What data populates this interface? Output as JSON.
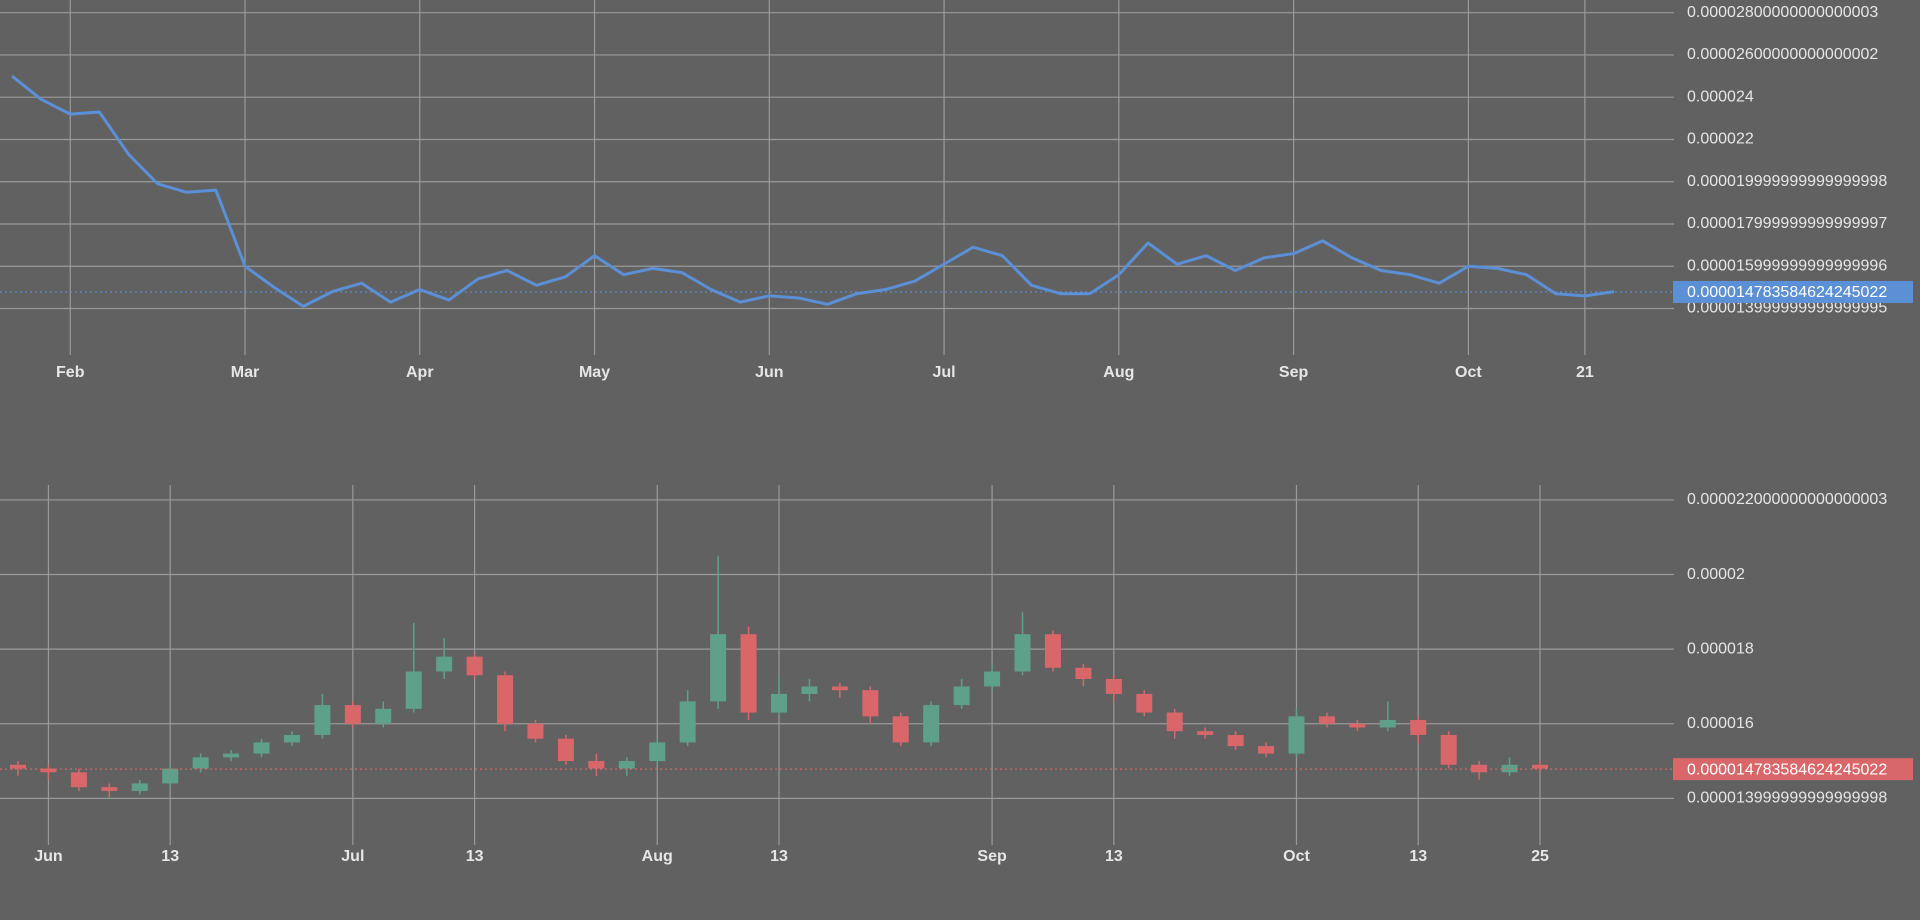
{
  "chart_data": [
    {
      "type": "line",
      "color": "#5b8fd6",
      "grid": true,
      "categories": [
        null,
        null,
        "Feb",
        null,
        null,
        null,
        null,
        null,
        "Mar",
        null,
        null,
        null,
        null,
        null,
        "Apr",
        null,
        null,
        null,
        null,
        null,
        "May",
        null,
        null,
        null,
        null,
        null,
        "Jun",
        null,
        null,
        null,
        null,
        null,
        "Jul",
        null,
        null,
        null,
        null,
        null,
        "Aug",
        null,
        null,
        null,
        null,
        null,
        "Sep",
        null,
        null,
        null,
        null,
        null,
        "Oct",
        null,
        null,
        null,
        "21",
        null
      ],
      "values": [
        2.5e-05,
        2.39e-05,
        2.32e-05,
        2.33e-05,
        2.13e-05,
        1.99e-05,
        1.95e-05,
        1.96e-05,
        1.6e-05,
        1.5e-05,
        1.41e-05,
        1.48e-05,
        1.52e-05,
        1.43e-05,
        1.49e-05,
        1.44e-05,
        1.54e-05,
        1.58e-05,
        1.51e-05,
        1.55e-05,
        1.65e-05,
        1.56e-05,
        1.59e-05,
        1.57e-05,
        1.49e-05,
        1.43e-05,
        1.46e-05,
        1.45e-05,
        1.42e-05,
        1.47e-05,
        1.49e-05,
        1.53e-05,
        1.61e-05,
        1.69e-05,
        1.65e-05,
        1.51e-05,
        1.47e-05,
        1.47e-05,
        1.56e-05,
        1.71e-05,
        1.61e-05,
        1.65e-05,
        1.58e-05,
        1.64e-05,
        1.66e-05,
        1.72e-05,
        1.64e-05,
        1.58e-05,
        1.56e-05,
        1.52e-05,
        1.6e-05,
        1.59e-05,
        1.56e-05,
        1.47e-05,
        1.46e-05,
        1.48e-05
      ],
      "ylim": [
        1.18e-05,
        2.86e-05
      ],
      "yticks": [
        {
          "value": 2.8e-05,
          "label": "0.00002800000000000003"
        },
        {
          "value": 2.6e-05,
          "label": "0.00002600000000000002"
        },
        2.4e-05,
        2.2e-05,
        {
          "value": 2e-05,
          "label": "0.000019999999999999998"
        },
        {
          "value": 1.8e-05,
          "label": "0.000017999999999999997"
        },
        {
          "value": 1.6e-05,
          "label": "0.000015999999999999996"
        },
        {
          "value": 1.4e-05,
          "label": "0.000013999999999999995"
        }
      ],
      "last_value": {
        "value": 1.4783584624245022e-05,
        "label": "0.000014783584624245022"
      }
    },
    {
      "type": "candlestick",
      "up_color": "#5fa08a",
      "down_color": "#d9676a",
      "grid": true,
      "categories": [
        null,
        "Jun",
        null,
        null,
        null,
        "13",
        null,
        null,
        null,
        null,
        null,
        "Jul",
        null,
        null,
        null,
        "13",
        null,
        null,
        null,
        null,
        null,
        "Aug",
        null,
        null,
        null,
        "13",
        null,
        null,
        null,
        null,
        null,
        null,
        "Sep",
        null,
        null,
        null,
        "13",
        null,
        null,
        null,
        null,
        null,
        "Oct",
        null,
        null,
        null,
        "13",
        null,
        null,
        null,
        "25"
      ],
      "open": [
        1.49e-05,
        1.48e-05,
        1.47e-05,
        1.43e-05,
        1.42e-05,
        1.44e-05,
        1.48e-05,
        1.51e-05,
        1.52e-05,
        1.55e-05,
        1.57e-05,
        1.65e-05,
        1.6e-05,
        1.64e-05,
        1.74e-05,
        1.78e-05,
        1.73e-05,
        1.6e-05,
        1.56e-05,
        1.5e-05,
        1.48e-05,
        1.5e-05,
        1.55e-05,
        1.66e-05,
        1.84e-05,
        1.63e-05,
        1.68e-05,
        1.7e-05,
        1.69e-05,
        1.62e-05,
        1.55e-05,
        1.65e-05,
        1.7e-05,
        1.74e-05,
        1.84e-05,
        1.75e-05,
        1.72e-05,
        1.68e-05,
        1.63e-05,
        1.58e-05,
        1.57e-05,
        1.54e-05,
        1.52e-05,
        1.62e-05,
        1.6e-05,
        1.59e-05,
        1.61e-05,
        1.57e-05,
        1.49e-05,
        1.47e-05,
        1.49e-05
      ],
      "high": [
        1.5e-05,
        1.49e-05,
        1.48e-05,
        1.44e-05,
        1.45e-05,
        1.49e-05,
        1.52e-05,
        1.53e-05,
        1.56e-05,
        1.58e-05,
        1.68e-05,
        1.66e-05,
        1.66e-05,
        1.87e-05,
        1.83e-05,
        1.79e-05,
        1.74e-05,
        1.61e-05,
        1.57e-05,
        1.52e-05,
        1.51e-05,
        1.56e-05,
        1.69e-05,
        2.05e-05,
        1.86e-05,
        1.73e-05,
        1.72e-05,
        1.71e-05,
        1.7e-05,
        1.63e-05,
        1.66e-05,
        1.72e-05,
        1.76e-05,
        1.9e-05,
        1.85e-05,
        1.76e-05,
        1.73e-05,
        1.69e-05,
        1.64e-05,
        1.59e-05,
        1.58e-05,
        1.55e-05,
        1.64e-05,
        1.63e-05,
        1.61e-05,
        1.66e-05,
        1.62e-05,
        1.58e-05,
        1.5e-05,
        1.51e-05,
        1.5e-05
      ],
      "low": [
        1.46e-05,
        1.45e-05,
        1.42e-05,
        1.4e-05,
        1.41e-05,
        1.43e-05,
        1.47e-05,
        1.5e-05,
        1.51e-05,
        1.54e-05,
        1.56e-05,
        1.59e-05,
        1.59e-05,
        1.63e-05,
        1.72e-05,
        1.72e-05,
        1.58e-05,
        1.55e-05,
        1.49e-05,
        1.46e-05,
        1.46e-05,
        1.49e-05,
        1.54e-05,
        1.64e-05,
        1.61e-05,
        1.62e-05,
        1.66e-05,
        1.67e-05,
        1.6e-05,
        1.54e-05,
        1.54e-05,
        1.64e-05,
        1.69e-05,
        1.73e-05,
        1.74e-05,
        1.7e-05,
        1.66e-05,
        1.62e-05,
        1.56e-05,
        1.56e-05,
        1.53e-05,
        1.51e-05,
        1.51e-05,
        1.59e-05,
        1.58e-05,
        1.58e-05,
        1.55e-05,
        1.48e-05,
        1.45e-05,
        1.46e-05,
        1.47e-05
      ],
      "close": [
        1.48e-05,
        1.47e-05,
        1.43e-05,
        1.42e-05,
        1.44e-05,
        1.48e-05,
        1.51e-05,
        1.52e-05,
        1.55e-05,
        1.57e-05,
        1.65e-05,
        1.6e-05,
        1.64e-05,
        1.74e-05,
        1.78e-05,
        1.73e-05,
        1.6e-05,
        1.56e-05,
        1.5e-05,
        1.48e-05,
        1.5e-05,
        1.55e-05,
        1.66e-05,
        1.84e-05,
        1.63e-05,
        1.68e-05,
        1.7e-05,
        1.69e-05,
        1.62e-05,
        1.55e-05,
        1.65e-05,
        1.7e-05,
        1.74e-05,
        1.84e-05,
        1.75e-05,
        1.72e-05,
        1.68e-05,
        1.63e-05,
        1.58e-05,
        1.57e-05,
        1.54e-05,
        1.52e-05,
        1.62e-05,
        1.6e-05,
        1.59e-05,
        1.61e-05,
        1.57e-05,
        1.49e-05,
        1.47e-05,
        1.49e-05,
        1.48e-05
      ],
      "ylim": [
        1.275e-05,
        2.24e-05
      ],
      "yticks": [
        {
          "value": 2.2e-05,
          "label": "0.000022000000000000003"
        },
        2e-05,
        1.8e-05,
        1.6e-05,
        {
          "value": 1.4e-05,
          "label": "0.000013999999999999998"
        }
      ],
      "last_value": {
        "value": 1.4783584624245022e-05,
        "label": "0.000014783584624245022"
      }
    }
  ]
}
